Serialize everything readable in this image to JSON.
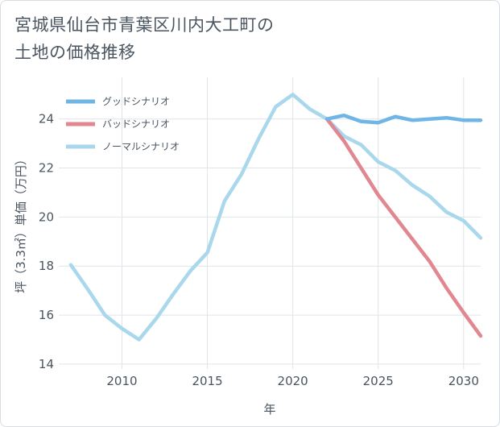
{
  "chart_data": {
    "type": "line",
    "title_line1": "宮城県仙台市青葉区川内大工町の",
    "title_line2": "土地の価格推移",
    "xlabel": "年",
    "ylabel": "坪（3.3㎡）単価（万円）",
    "xlim": [
      2006.3,
      2031
    ],
    "ylim": [
      13.8,
      25.7
    ],
    "xticks": [
      2010,
      2015,
      2020,
      2025,
      2030
    ],
    "yticks": [
      14,
      16,
      18,
      20,
      22,
      24
    ],
    "grid": true,
    "legend_position": "top-left",
    "series": [
      {
        "name": "グッドシナリオ",
        "color": "#6fb5e6",
        "x": [
          2022,
          2023,
          2024,
          2025,
          2026,
          2027,
          2028,
          2029,
          2030,
          2031
        ],
        "y": [
          24.0,
          24.15,
          23.9,
          23.85,
          24.1,
          23.95,
          24.0,
          24.05,
          23.95,
          23.95
        ]
      },
      {
        "name": "バッドシナリオ",
        "color": "#e0878f",
        "x": [
          2022,
          2023,
          2024,
          2025,
          2026,
          2027,
          2028,
          2029,
          2030,
          2031
        ],
        "y": [
          24.0,
          23.1,
          22.0,
          20.9,
          20.0,
          19.1,
          18.2,
          17.1,
          16.1,
          15.15
        ]
      },
      {
        "name": "ノーマルシナリオ",
        "color": "#a9d7ec",
        "x": [
          2007,
          2008,
          2009,
          2010,
          2011,
          2012,
          2013,
          2014,
          2015,
          2016,
          2017,
          2018,
          2019,
          2020,
          2021,
          2022,
          2023,
          2024,
          2025,
          2026,
          2027,
          2028,
          2029,
          2030,
          2031
        ],
        "y": [
          18.05,
          17.05,
          16.0,
          15.45,
          15.0,
          15.85,
          16.85,
          17.8,
          18.55,
          20.65,
          21.75,
          23.2,
          24.5,
          25.0,
          24.4,
          24.0,
          23.3,
          22.95,
          22.25,
          21.9,
          21.3,
          20.85,
          20.2,
          19.85,
          19.15
        ]
      }
    ]
  }
}
